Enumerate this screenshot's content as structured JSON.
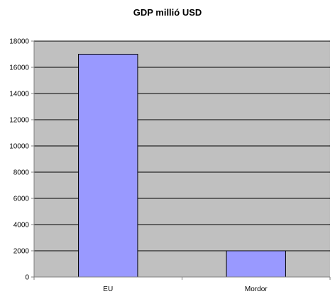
{
  "chart_data": {
    "type": "bar",
    "title": "GDP millió USD",
    "xlabel": "",
    "ylabel": "",
    "categories": [
      "EU",
      "Mordor"
    ],
    "values": [
      17000,
      2000
    ],
    "ylim": [
      0,
      18000
    ],
    "yticks": [
      0,
      2000,
      4000,
      6000,
      8000,
      10000,
      12000,
      14000,
      16000,
      18000
    ],
    "grid": true,
    "legend": "none",
    "colors": {
      "plot_background": "#c0c0c0",
      "bar_fill": "#9999ff",
      "bar_stroke": "#000000",
      "gridline": "#000000",
      "axis": "#808080"
    }
  }
}
